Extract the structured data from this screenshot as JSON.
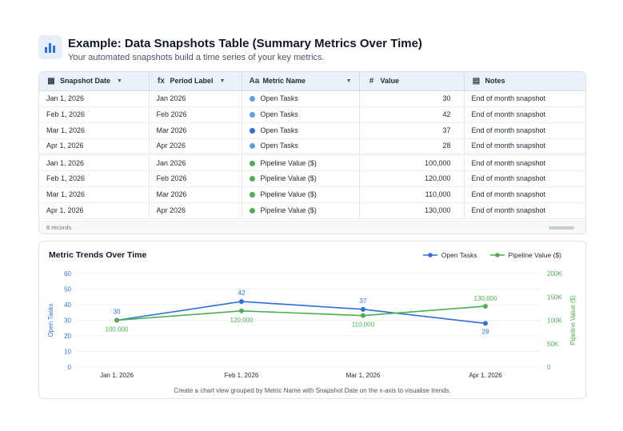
{
  "header": {
    "title": "Example: Data Snapshots Table (Summary Metrics Over Time)",
    "subtitle": "Your automated snapshots build a time series of your key metrics.",
    "icon": "bar-chart-icon"
  },
  "table": {
    "columns": [
      {
        "label": "Snapshot Date",
        "icon": "calendar-icon",
        "glyph": "▦",
        "chevron": true
      },
      {
        "label": "Period Label",
        "icon": "formula-icon",
        "glyph": "fx",
        "chevron": true
      },
      {
        "label": "Metric Name",
        "icon": "text-icon",
        "glyph": "Aa",
        "chevron": true
      },
      {
        "label": "Value",
        "icon": "hash-icon",
        "glyph": "#",
        "chevron": false
      },
      {
        "label": "Notes",
        "icon": "notes-icon",
        "glyph": "▤",
        "chevron": false
      }
    ],
    "rows": [
      {
        "date": "Jan 1, 2026",
        "period": "Jan 2026",
        "metric": "Open Tasks",
        "dot": "#5aa0e6",
        "value": "30",
        "notes": "End of month snapshot"
      },
      {
        "date": "Feb 1, 2026",
        "period": "Feb 2026",
        "metric": "Open Tasks",
        "dot": "#5aa0e6",
        "value": "42",
        "notes": "End of month snapshot"
      },
      {
        "date": "Mar 1, 2026",
        "period": "Mar 2026",
        "metric": "Open Tasks",
        "dot": "#2f6fde",
        "value": "37",
        "notes": "End of month snapshot"
      },
      {
        "date": "Apr 1, 2026",
        "period": "Apr 2026",
        "metric": "Open Tasks",
        "dot": "#5aa0e6",
        "value": "28",
        "notes": "End of month snapshot"
      },
      {
        "date": "Jan 1, 2026",
        "period": "Jan 2026",
        "metric": "Pipeline Value ($)",
        "dot": "#4caf50",
        "value": "100,000",
        "notes": "End of month snapshot"
      },
      {
        "date": "Feb 1, 2026",
        "period": "Feb 2026",
        "metric": "Pipeline Value ($)",
        "dot": "#4caf50",
        "value": "120,000",
        "notes": "End of month snapshot"
      },
      {
        "date": "Mar 1, 2026",
        "period": "Mar 2026",
        "metric": "Pipeline Value ($)",
        "dot": "#4caf50",
        "value": "110,000",
        "notes": "End of month snapshot"
      },
      {
        "date": "Apr 1, 2026",
        "period": "Apr 2026",
        "metric": "Pipeline Value ($)",
        "dot": "#4caf50",
        "value": "130,000",
        "notes": "End of month snapshot"
      }
    ],
    "records_label": "8 records"
  },
  "chart": {
    "title": "Metric Trends Over Time",
    "footnote": "Create a chart view grouped by Metric Name with Snapshot Date on the x-axis to visualise trends.",
    "colors": {
      "open_tasks": "#2f6fde",
      "pipeline": "#4caf50"
    }
  },
  "chart_data": {
    "type": "line",
    "title": "Metric Trends Over Time",
    "categories": [
      "Jan 1, 2026",
      "Feb 1, 2026",
      "Mar 1, 2026",
      "Apr 1, 2026"
    ],
    "series": [
      {
        "name": "Open Tasks",
        "axis": "left",
        "color": "#2f6fde",
        "values": [
          30,
          42,
          37,
          28
        ],
        "labels": [
          "30",
          "42",
          "37",
          "28"
        ]
      },
      {
        "name": "Pipeline Value ($)",
        "axis": "right",
        "color": "#4caf50",
        "values": [
          100000,
          120000,
          110000,
          130000
        ],
        "labels": [
          "100,000",
          "120,000",
          "110,000",
          "130,000"
        ]
      }
    ],
    "y_left": {
      "label": "Open Tasks",
      "ylim": [
        0,
        60
      ],
      "ticks": [
        "0",
        "10",
        "20",
        "30",
        "40",
        "50",
        "60"
      ]
    },
    "y_right": {
      "label": "Pipeline Value ($)",
      "ylim": [
        0,
        200000
      ],
      "ticks": [
        "0",
        "50K",
        "100K",
        "150K",
        "200K"
      ]
    },
    "grid": "horizontal",
    "legend": "top-right"
  }
}
